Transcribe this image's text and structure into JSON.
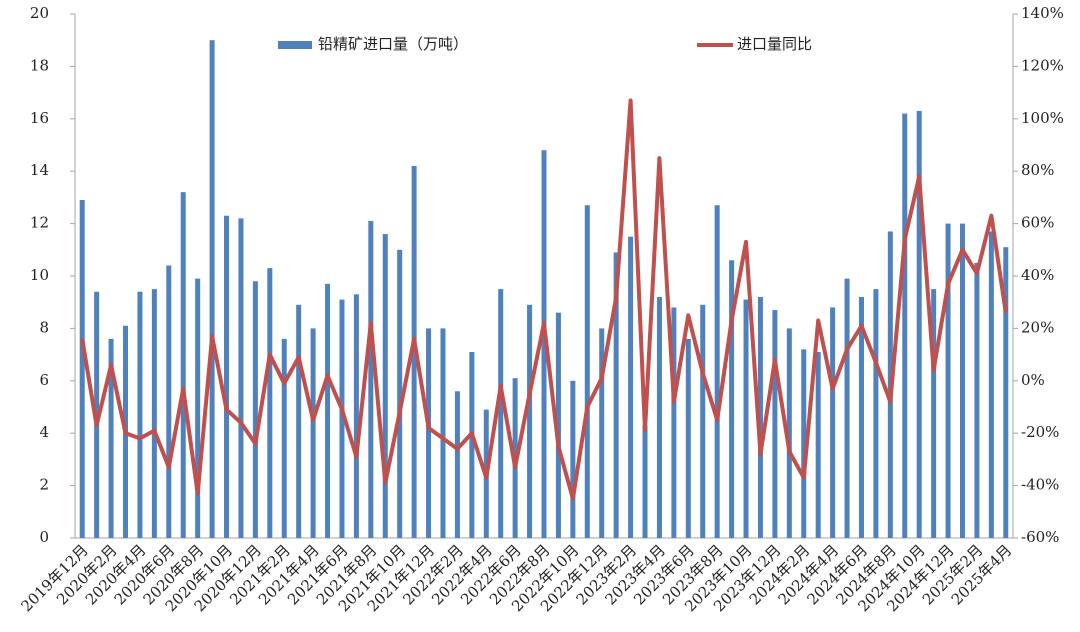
{
  "chart_data": {
    "type": "bar-line",
    "categories": [
      "2019年12月",
      null,
      "2020年2月",
      null,
      "2020年4月",
      null,
      "2020年6月",
      null,
      "2020年8月",
      null,
      "2020年10月",
      null,
      "2020年12月",
      null,
      "2021年2月",
      null,
      "2021年4月",
      null,
      "2021年6月",
      null,
      "2021年8月",
      null,
      "2021年10月",
      null,
      "2021年12月",
      null,
      "2022年2月",
      null,
      "2022年4月",
      null,
      "2022年6月",
      null,
      "2022年8月",
      null,
      "2022年10月",
      null,
      "2022年12月",
      null,
      "2023年2月",
      null,
      "2023年4月",
      null,
      "2023年6月",
      null,
      "2023年8月",
      null,
      "2023年10月",
      null,
      "2023年12月",
      null,
      "2024年2月",
      null,
      "2024年4月",
      null,
      "2024年6月",
      null,
      "2024年8月",
      null,
      "2024年10月",
      null,
      "2024年12月",
      null,
      "2025年2月",
      null,
      "2025年4月"
    ],
    "series": [
      {
        "name": "铅精矿进口量（万吨）",
        "kind": "bar",
        "color": "#4f81bd",
        "values": [
          12.9,
          9.4,
          7.6,
          8.1,
          9.4,
          9.5,
          10.4,
          13.2,
          9.9,
          19.0,
          12.3,
          12.2,
          9.8,
          10.3,
          7.6,
          8.9,
          8.0,
          9.7,
          9.1,
          9.3,
          12.1,
          11.6,
          11.0,
          14.2,
          8.0,
          8.0,
          5.6,
          7.1,
          4.9,
          9.5,
          6.1,
          8.9,
          14.8,
          8.6,
          6.0,
          12.7,
          8.0,
          10.9,
          11.5,
          4.3,
          9.2,
          8.8,
          7.6,
          8.9,
          12.7,
          10.6,
          9.1,
          9.2,
          8.7,
          8.0,
          7.2,
          7.1,
          8.8,
          9.9,
          9.2,
          9.5,
          11.7,
          16.2,
          16.3,
          9.5,
          12.0,
          12.0,
          10.5,
          11.7,
          11.1
        ]
      },
      {
        "name": "进口量同比",
        "kind": "line",
        "axis": "y2",
        "color": "#c0504d",
        "values": [
          16,
          -17,
          6,
          -20,
          -22,
          -19,
          -33,
          -3,
          -43,
          17,
          -11,
          -16,
          -24,
          10,
          -1,
          9,
          -15,
          2,
          -11,
          -29,
          22,
          -39,
          -12,
          16,
          -18,
          -22,
          -26,
          -20,
          -37,
          -2,
          -33,
          -5,
          22,
          -25,
          -45,
          -10,
          1,
          32,
          107,
          -19,
          85,
          -8,
          25,
          3,
          -15,
          23,
          53,
          -28,
          8,
          -27,
          -37,
          23,
          -3,
          12,
          21,
          7,
          -8,
          54,
          78,
          4,
          37,
          50,
          41,
          63,
          26
        ]
      }
    ],
    "ylim": [
      0,
      20
    ],
    "yticks": [
      0,
      2,
      4,
      6,
      8,
      10,
      12,
      14,
      16,
      18,
      20
    ],
    "y2lim": [
      -60,
      140
    ],
    "y2ticks": [
      {
        "value": -60,
        "label": "-60%"
      },
      {
        "value": -40,
        "label": "-40%"
      },
      {
        "value": -20,
        "label": "-20%"
      },
      {
        "value": 0,
        "label": "0%"
      },
      {
        "value": 20,
        "label": "20%"
      },
      {
        "value": 40,
        "label": "40%"
      },
      {
        "value": 60,
        "label": "60%"
      },
      {
        "value": 80,
        "label": "80%"
      },
      {
        "value": 100,
        "label": "100%"
      },
      {
        "value": 120,
        "label": "120%"
      },
      {
        "value": 140,
        "label": "140%"
      }
    ],
    "grid": false
  }
}
